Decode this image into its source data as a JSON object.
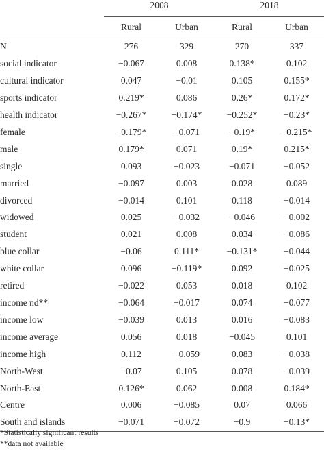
{
  "header": {
    "years": [
      "2008",
      "2018"
    ],
    "columns": [
      "Rural",
      "Urban",
      "Rural",
      "Urban"
    ]
  },
  "rows": [
    {
      "label": "N",
      "values": [
        "276",
        "329",
        "270",
        "337"
      ]
    },
    {
      "label": "social indicator",
      "values": [
        "−0.067",
        "0.008",
        "0.138*",
        "0.102"
      ]
    },
    {
      "label": "cultural indicator",
      "values": [
        "0.047",
        "−0.01",
        "0.105",
        "0.155*"
      ]
    },
    {
      "label": "sports indicator",
      "values": [
        "0.219*",
        "0.086",
        "0.26*",
        "0.172*"
      ]
    },
    {
      "label": "health indicator",
      "values": [
        "−0.267*",
        "−0.174*",
        "−0.252*",
        "−0.23*"
      ]
    },
    {
      "label": "female",
      "values": [
        "−0.179*",
        "−0.071",
        "−0.19*",
        "−0.215*"
      ]
    },
    {
      "label": "male",
      "values": [
        "0.179*",
        "0.071",
        "0.19*",
        "0.215*"
      ]
    },
    {
      "label": "single",
      "values": [
        "0.093",
        "−0.023",
        "−0.071",
        "−0.052"
      ]
    },
    {
      "label": "married",
      "values": [
        "−0.097",
        "0.003",
        "0.028",
        "0.089"
      ]
    },
    {
      "label": "divorced",
      "values": [
        "−0.014",
        "0.101",
        "0.118",
        "−0.014"
      ]
    },
    {
      "label": "widowed",
      "values": [
        "0.025",
        "−0.032",
        "−0.046",
        "−0.002"
      ]
    },
    {
      "label": "student",
      "values": [
        "0.021",
        "0.008",
        "0.034",
        "−0.086"
      ]
    },
    {
      "label": "blue collar",
      "values": [
        "−0.06",
        "0.111*",
        "−0.131*",
        "−0.044"
      ]
    },
    {
      "label": "white collar",
      "values": [
        "0.096",
        "−0.119*",
        "0.092",
        "−0.025"
      ]
    },
    {
      "label": "retired",
      "values": [
        "−0.022",
        "0.053",
        "0.018",
        "0.102"
      ]
    },
    {
      "label": "income nd**",
      "values": [
        "−0.064",
        "−0.017",
        "0.074",
        "−0.077"
      ]
    },
    {
      "label": "income low",
      "values": [
        "−0.039",
        "0.013",
        "0.016",
        "−0.083"
      ]
    },
    {
      "label": "income average",
      "values": [
        "0.056",
        "0.018",
        "−0.045",
        "0.101"
      ]
    },
    {
      "label": "income high",
      "values": [
        "0.112",
        "−0.059",
        "0.083",
        "−0.038"
      ]
    },
    {
      "label": "North-West",
      "values": [
        "−0.07",
        "0.105",
        "0.078",
        "−0.039"
      ]
    },
    {
      "label": "North-East",
      "values": [
        "0.126*",
        "0.062",
        "0.008",
        "0.184*"
      ]
    },
    {
      "label": "Centre",
      "values": [
        "0.006",
        "−0.085",
        "0.07",
        "0.066"
      ]
    },
    {
      "label": "South and islands",
      "values": [
        "−0.071",
        "−0.072",
        "−0.9",
        "−0.13*"
      ]
    }
  ],
  "notes": [
    "*Statistically significant results",
    "**data not available"
  ]
}
